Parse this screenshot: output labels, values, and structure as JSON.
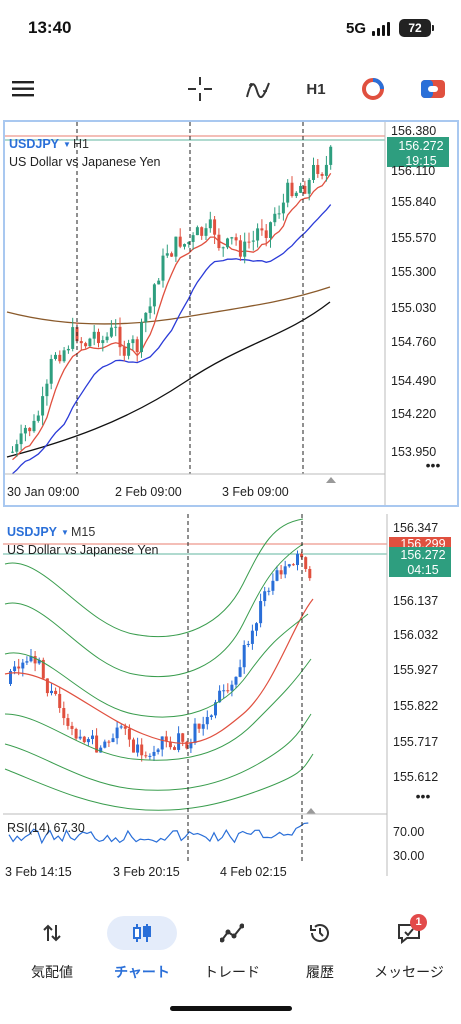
{
  "status_bar": {
    "time": "13:40",
    "network": "5G",
    "battery": "72"
  },
  "toolbar": {
    "timeframe": "H1"
  },
  "chart_top": {
    "symbol": "USDJPY",
    "timeframe": "H1",
    "description": "US Dollar vs Japanese Yen",
    "bid_price": "156.272",
    "countdown": "19:15",
    "price_axis": [
      "156.380",
      "156.110",
      "155.840",
      "155.570",
      "155.300",
      "155.030",
      "154.760",
      "154.490",
      "154.220",
      "153.950"
    ],
    "time_axis": [
      "30 Jan 09:00",
      "2 Feb 09:00",
      "3 Feb 09:00"
    ],
    "more": "•••"
  },
  "chart_bottom": {
    "symbol": "USDJPY",
    "timeframe": "M15",
    "description": "US Dollar vs Japanese Yen",
    "ask_price": "156.299",
    "bid_price": "156.272",
    "countdown": "04:15",
    "price_axis": [
      "156.347",
      "156.137",
      "156.032",
      "155.927",
      "155.822",
      "155.717",
      "155.612"
    ],
    "time_axis": [
      "3 Feb 14:15",
      "3 Feb 20:15",
      "4 Feb 02:15"
    ],
    "more": "•••",
    "rsi_label": "RSI(14) 67.30",
    "rsi_axis": [
      "70.00",
      "30.00"
    ]
  },
  "nav": {
    "quotes": "気配値",
    "chart": "チャート",
    "trade": "トレード",
    "history": "履歴",
    "messages": "メッセージ",
    "messages_badge": "1"
  },
  "colors": {
    "bull": "#2e9e7f",
    "bear": "#e0503f",
    "accent": "#2a6fd8"
  }
}
